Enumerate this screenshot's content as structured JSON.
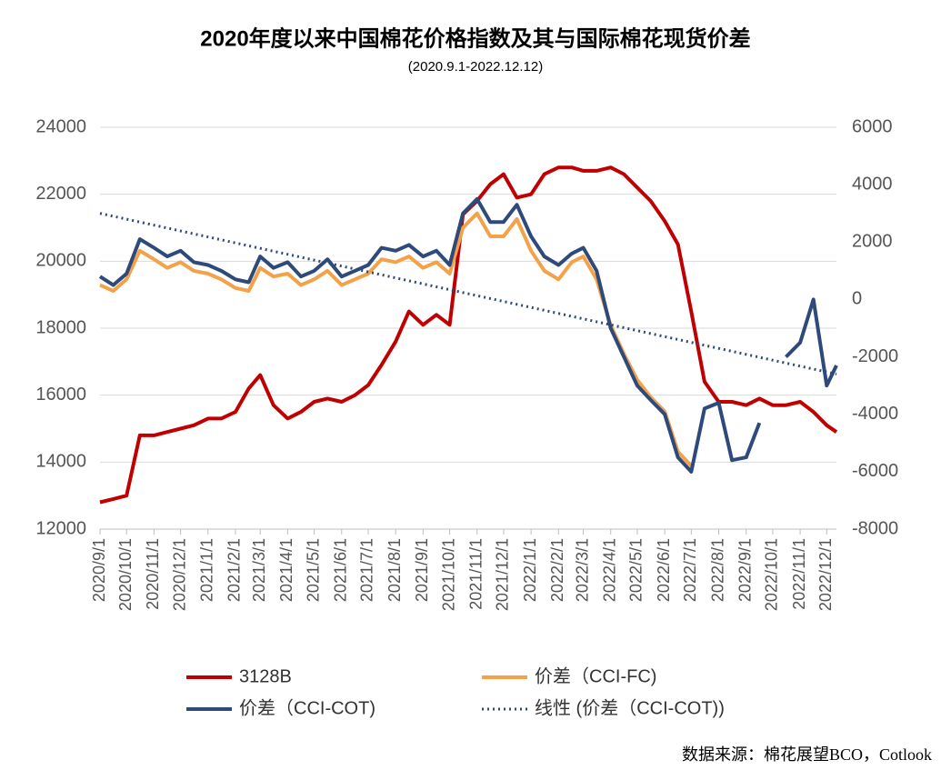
{
  "chart_data": {
    "type": "line",
    "title": "2020年度以来中国棉花价格指数及其与国际棉花现货价差",
    "subtitle": "(2020.9.1-2022.12.12)",
    "source": "数据来源：棉花展望BCO，Cotlook",
    "x": [
      "2020/9/1",
      "2020/9/16",
      "2020/10/1",
      "2020/10/16",
      "2020/11/1",
      "2020/11/16",
      "2020/12/1",
      "2020/12/16",
      "2021/1/1",
      "2021/1/16",
      "2021/2/1",
      "2021/2/16",
      "2021/3/1",
      "2021/3/16",
      "2021/4/1",
      "2021/4/16",
      "2021/5/1",
      "2021/5/16",
      "2021/6/1",
      "2021/6/16",
      "2021/7/1",
      "2021/7/16",
      "2021/8/1",
      "2021/8/16",
      "2021/9/1",
      "2021/9/16",
      "2021/10/1",
      "2021/10/16",
      "2021/11/1",
      "2021/11/16",
      "2021/12/1",
      "2021/12/16",
      "2022/1/1",
      "2022/1/16",
      "2022/2/1",
      "2022/2/16",
      "2022/3/1",
      "2022/3/16",
      "2022/4/1",
      "2022/4/16",
      "2022/5/1",
      "2022/5/16",
      "2022/6/1",
      "2022/6/16",
      "2022/7/1",
      "2022/7/16",
      "2022/8/1",
      "2022/8/16",
      "2022/9/1",
      "2022/9/16",
      "2022/10/1",
      "2022/10/16",
      "2022/11/1",
      "2022/11/16",
      "2022/12/1",
      "2022/12/12"
    ],
    "xlim": [
      "2020/9/1",
      "2022/12/12"
    ],
    "xticks": [
      "2020/9/1",
      "2020/10/1",
      "2020/11/1",
      "2020/12/1",
      "2021/1/1",
      "2021/2/1",
      "2021/3/1",
      "2021/4/1",
      "2021/5/1",
      "2021/6/1",
      "2021/7/1",
      "2021/8/1",
      "2021/9/1",
      "2021/10/1",
      "2021/11/1",
      "2021/12/1",
      "2022/1/1",
      "2022/2/1",
      "2022/3/1",
      "2022/4/1",
      "2022/5/1",
      "2022/6/1",
      "2022/7/1",
      "2022/8/1",
      "2022/9/1",
      "2022/10/1",
      "2022/11/1",
      "2022/12/1"
    ],
    "ylim": [
      12000,
      24000
    ],
    "yticks": [
      12000,
      14000,
      16000,
      18000,
      20000,
      22000,
      24000
    ],
    "y2lim": [
      -8000,
      6000
    ],
    "y2ticks": [
      -8000,
      -6000,
      -4000,
      -2000,
      0,
      2000,
      4000,
      6000
    ],
    "grid": true,
    "series": [
      {
        "name": "3128B",
        "color": "#c00000",
        "values": [
          12800,
          12900,
          13000,
          14800,
          14800,
          14900,
          15000,
          15100,
          15300,
          15300,
          15500,
          16200,
          16600,
          15700,
          15300,
          15500,
          15800,
          15900,
          15800,
          16000,
          16300,
          16900,
          17600,
          18500,
          18100,
          18400,
          18100,
          21400,
          21800,
          22300,
          22600,
          21900,
          22000,
          22600,
          22800,
          22800,
          22700,
          22700,
          22800,
          22600,
          22200,
          21800,
          21200,
          20500,
          18500,
          16400,
          15800,
          15800,
          15700,
          15900,
          15700,
          15700,
          15800,
          15500,
          15100,
          14900
        ]
      },
      {
        "name": "价差（CCI-FC)",
        "color": "#f4a24a",
        "axis": "y2",
        "values": [
          500,
          300,
          700,
          1700,
          1400,
          1100,
          1300,
          1000,
          900,
          700,
          400,
          300,
          1100,
          800,
          900,
          500,
          700,
          1000,
          500,
          700,
          900,
          1400,
          1300,
          1500,
          1100,
          1300,
          900,
          2500,
          3000,
          2200,
          2200,
          2800,
          1700,
          1000,
          700,
          1300,
          1500,
          700,
          -900,
          -1900,
          -2800,
          -3400,
          -3900,
          -5300,
          -5800,
          null,
          null,
          null,
          null,
          null,
          null,
          null,
          null,
          null,
          null,
          null
        ]
      },
      {
        "name": "价差（CCI-COT)",
        "color": "#2e4a7a",
        "axis": "y2",
        "values": [
          800,
          500,
          900,
          2100,
          1800,
          1500,
          1700,
          1300,
          1200,
          1000,
          700,
          600,
          1500,
          1100,
          1300,
          800,
          1000,
          1400,
          800,
          1000,
          1200,
          1800,
          1700,
          1900,
          1500,
          1700,
          1200,
          3000,
          3500,
          2700,
          2700,
          3300,
          2200,
          1500,
          1200,
          1600,
          1800,
          1000,
          -1000,
          -2000,
          -3000,
          -3500,
          -4000,
          -5500,
          -6000,
          -3800,
          -3600,
          -5600,
          -5500,
          -4300,
          null,
          -2000,
          -1500,
          0,
          -3000,
          -2300
        ]
      },
      {
        "name": "线性 (价差（CCI-COT))",
        "color": "#2e4a7a",
        "axis": "y2",
        "dotted": true,
        "x": [
          "2020/9/1",
          "2022/12/12"
        ],
        "values": [
          3000,
          -2600
        ]
      }
    ]
  }
}
